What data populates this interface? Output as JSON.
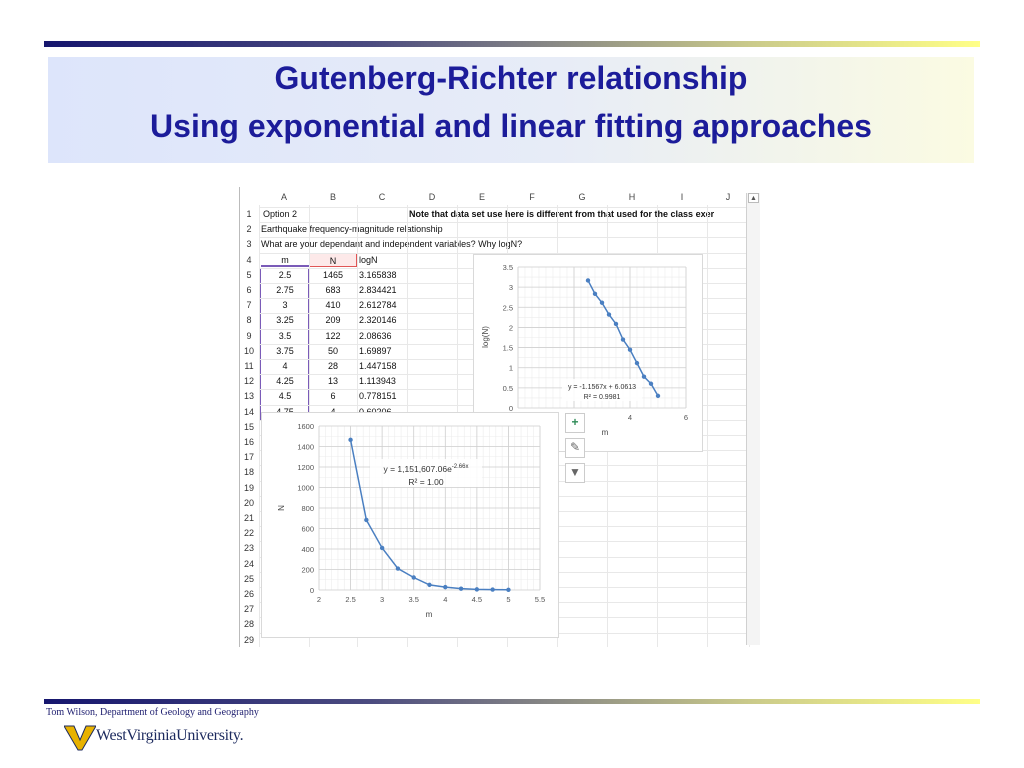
{
  "slide": {
    "title_line1": "Gutenberg-Richter relationship",
    "title_line2": "Using exponential and linear fitting approaches",
    "footer": "Tom Wilson, Department of Geology and Geography",
    "university": "WestVirginiaUniversity."
  },
  "spreadsheet": {
    "columns": [
      "A",
      "B",
      "C",
      "D",
      "E",
      "F",
      "G",
      "H",
      "I",
      "J"
    ],
    "rows": [
      "1",
      "2",
      "3",
      "4",
      "5",
      "6",
      "7",
      "8",
      "9",
      "10",
      "11",
      "12",
      "13",
      "14",
      "15",
      "16",
      "17",
      "18",
      "19",
      "20",
      "21",
      "22",
      "23",
      "24",
      "25",
      "26",
      "27",
      "28",
      "29"
    ],
    "row1_a": "Option 2",
    "row1_note": "Note that data set use here is different from that used for the class exer",
    "row2": "Earthquake frequency-magnitude relationship",
    "row3": "What are your dependant and independent variables? Why logN?",
    "headers": [
      "m",
      "N",
      "logN"
    ],
    "data": [
      [
        "2.5",
        "1465",
        "3.165838"
      ],
      [
        "2.75",
        "683",
        "2.834421"
      ],
      [
        "3",
        "410",
        "2.612784"
      ],
      [
        "3.25",
        "209",
        "2.320146"
      ],
      [
        "3.5",
        "122",
        "2.08636"
      ],
      [
        "3.75",
        "50",
        "1.69897"
      ],
      [
        "4",
        "28",
        "1.447158"
      ],
      [
        "4.25",
        "13",
        "1.113943"
      ],
      [
        "4.5",
        "6",
        "0.778151"
      ],
      [
        "4.75",
        "4",
        "0.60206"
      ]
    ]
  },
  "chart_data": [
    {
      "type": "scatter",
      "x": [
        2.5,
        2.75,
        3,
        3.25,
        3.5,
        3.75,
        4,
        4.25,
        4.5,
        4.75,
        5
      ],
      "y": [
        1465,
        683,
        410,
        209,
        122,
        50,
        28,
        13,
        6,
        4,
        2
      ],
      "xlabel": "m",
      "ylabel": "N",
      "xlim": [
        2,
        5.5
      ],
      "ylim": [
        0,
        1600
      ],
      "xticks": [
        "2",
        "2.5",
        "3",
        "3.5",
        "4",
        "4.5",
        "5",
        "5.5"
      ],
      "yticks": [
        "0",
        "200",
        "400",
        "600",
        "800",
        "1000",
        "1200",
        "1400",
        "1600"
      ],
      "equation": "y = 1,151,607.06e",
      "equation_exp": "-2.66x",
      "r2": "R² = 1.00",
      "grid": true
    },
    {
      "type": "scatter",
      "x": [
        2.5,
        2.75,
        3,
        3.25,
        3.5,
        3.75,
        4,
        4.25,
        4.5,
        4.75,
        5
      ],
      "y": [
        3.165838,
        2.834421,
        2.612784,
        2.320146,
        2.08636,
        1.69897,
        1.447158,
        1.113943,
        0.778151,
        0.60206,
        0.30103
      ],
      "xlabel": "m",
      "ylabel": "log(N)",
      "xlim": [
        0,
        6
      ],
      "ylim": [
        0,
        3.5
      ],
      "xticks": [
        "0",
        "2",
        "4",
        "6"
      ],
      "yticks": [
        "0",
        "0.5",
        "1",
        "1.5",
        "2",
        "2.5",
        "3",
        "3.5"
      ],
      "equation": "y = -1.1567x + 6.0613",
      "r2": "R² = 0.9981",
      "grid": true
    }
  ],
  "icons": {
    "add": "plus-icon",
    "style": "brush-icon",
    "filter": "filter-icon"
  },
  "colors": {
    "title": "#1c1c9a",
    "series": "#4a7fc1"
  }
}
